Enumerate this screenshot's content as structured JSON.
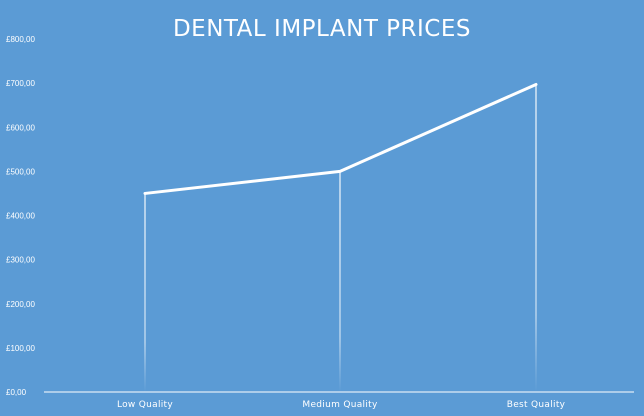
{
  "chart_data": {
    "type": "line",
    "title": "DENTAL IMPLANT PRICES",
    "xlabel": "",
    "ylabel": "",
    "categories": [
      "Low Quality",
      "Medium Quality",
      "Best Quality"
    ],
    "series": [
      {
        "values": [
          450,
          500,
          697
        ]
      }
    ],
    "ylim": [
      0,
      800
    ],
    "yticks": [
      "£0,00",
      "£100,00",
      "£200,00",
      "£300,00",
      "£400,00",
      "£500,00",
      "£600,00",
      "£700,00",
      "£800,00"
    ],
    "grid": false,
    "drop_lines": true,
    "colors": {
      "background": "#5b9bd5",
      "line": "#ffffff",
      "text": "#ffffff"
    }
  }
}
